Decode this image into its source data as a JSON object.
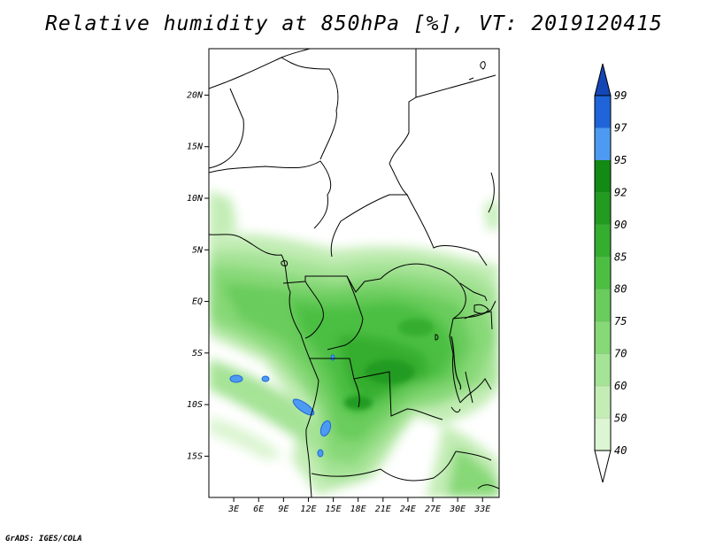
{
  "title": "Relative humidity at 850hPa [%], VT: 2019120415",
  "footer": "GrADS: IGES/COLA",
  "map": {
    "lat_labels": [
      "20N",
      "15N",
      "10N",
      "5N",
      "EQ",
      "5S",
      "10S",
      "15S"
    ],
    "lon_labels": [
      "3E",
      "6E",
      "9E",
      "12E",
      "15E",
      "18E",
      "21E",
      "24E",
      "27E",
      "30E",
      "33E"
    ],
    "lat_values": [
      20,
      15,
      10,
      5,
      0,
      -5,
      -10,
      -15
    ],
    "lon_values": [
      3,
      6,
      9,
      12,
      15,
      18,
      21,
      24,
      27,
      30,
      33
    ],
    "extent": {
      "lon_min": 0,
      "lon_max": 35,
      "lat_min": -19,
      "lat_max": 24.5
    }
  },
  "colorbar": {
    "levels": [
      "40",
      "50",
      "60",
      "70",
      "75",
      "80",
      "85",
      "90",
      "92",
      "95",
      "97",
      "99"
    ],
    "colors": [
      "#f0fbeb",
      "#dcf5d2",
      "#c3edb5",
      "#a5e396",
      "#87d877",
      "#69cc5c",
      "#4cbf43",
      "#35ad2f",
      "#239b21",
      "#138a14",
      "#4d9af2",
      "#1f65d9",
      "#1546b5"
    ],
    "lower_color": "#ffffff"
  }
}
